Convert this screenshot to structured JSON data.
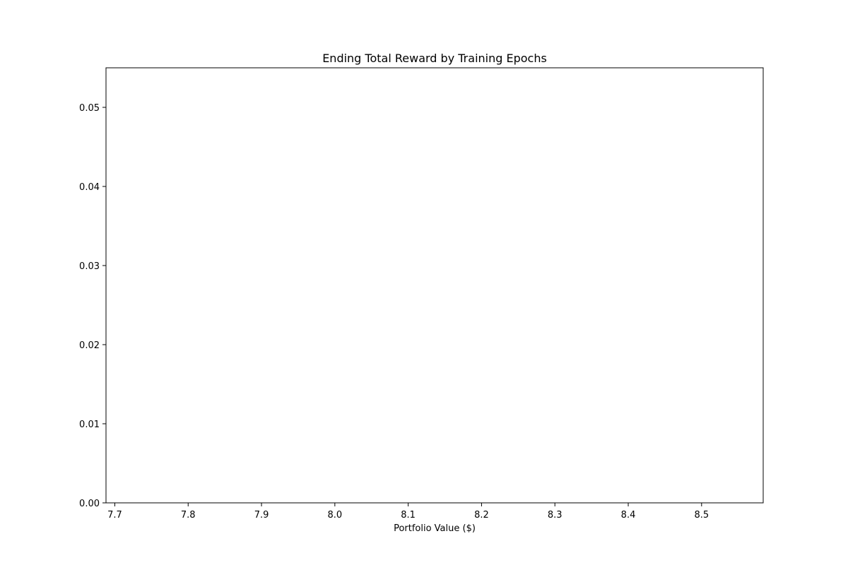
{
  "chart_data": {
    "type": "bar",
    "title": "Ending Total Reward by Training Epochs",
    "xlabel": "Portfolio Value ($)",
    "ylabel": "",
    "xlim": [
      7.688,
      8.584
    ],
    "ylim": [
      0.0,
      0.055
    ],
    "x_ticks": [
      7.7,
      7.8,
      7.9,
      8.0,
      8.1,
      8.2,
      8.3,
      8.4,
      8.5
    ],
    "x_tick_labels": [
      "7.7",
      "7.8",
      "7.9",
      "8.0",
      "8.1",
      "8.2",
      "8.3",
      "8.4",
      "8.5"
    ],
    "y_ticks": [
      0.0,
      0.01,
      0.02,
      0.03,
      0.04,
      0.05
    ],
    "y_tick_labels": [
      "0.00",
      "0.01",
      "0.02",
      "0.03",
      "0.04",
      "0.05"
    ],
    "grid": false,
    "series": [],
    "colors": {
      "background": "#ffffff",
      "axes": "#000000",
      "text": "#000000"
    }
  }
}
